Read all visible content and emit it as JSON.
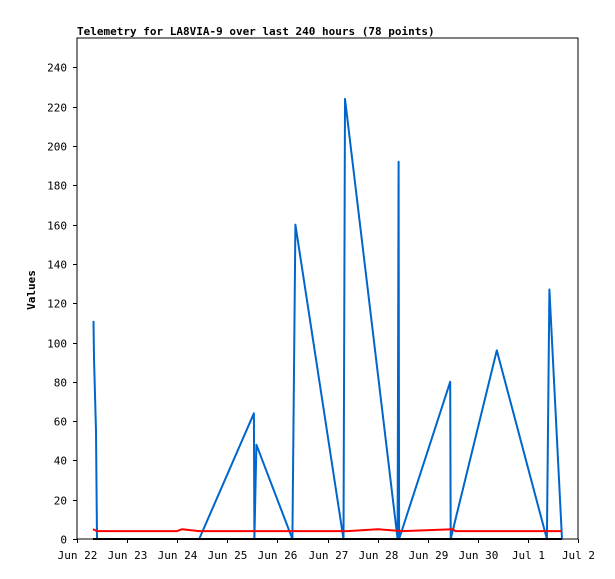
{
  "chart_data": {
    "type": "line",
    "title": "Telemetry for LA8VIA-9 over last 240 hours (78 points)",
    "xlabel": "",
    "ylabel": "Values",
    "ylim": [
      0,
      255
    ],
    "grid": false,
    "yticks": [
      0,
      20,
      40,
      60,
      80,
      100,
      120,
      140,
      160,
      180,
      200,
      220,
      240
    ],
    "xticks": [
      {
        "label": "Jun 22",
        "x": 0
      },
      {
        "label": "Jun 23",
        "x": 1
      },
      {
        "label": "Jun 24",
        "x": 2
      },
      {
        "label": "Jun 25",
        "x": 3
      },
      {
        "label": "Jun 26",
        "x": 4
      },
      {
        "label": "Jun 27",
        "x": 5
      },
      {
        "label": "Jun 28",
        "x": 6
      },
      {
        "label": "Jun 29",
        "x": 7
      },
      {
        "label": "Jun 30",
        "x": 8
      },
      {
        "label": "Jul 1",
        "x": 9
      },
      {
        "label": "Jul 2",
        "x": 10
      }
    ],
    "xlim": [
      0,
      10
    ],
    "series": [
      {
        "color": "#0066cc",
        "points": [
          [
            0.33,
            111
          ],
          [
            0.34,
            92
          ],
          [
            0.38,
            55
          ],
          [
            0.4,
            0
          ],
          [
            2.44,
            0
          ],
          [
            3.53,
            64
          ],
          [
            3.54,
            0
          ],
          [
            3.58,
            48
          ],
          [
            4.3,
            0
          ],
          [
            4.36,
            160
          ],
          [
            5.32,
            0
          ],
          [
            5.35,
            224
          ],
          [
            6.4,
            0
          ],
          [
            6.42,
            192
          ],
          [
            6.43,
            0
          ],
          [
            7.45,
            80
          ],
          [
            7.46,
            0
          ],
          [
            8.38,
            96
          ],
          [
            9.38,
            0
          ],
          [
            9.43,
            127
          ],
          [
            9.68,
            0
          ]
        ]
      },
      {
        "color": "#ff0000",
        "points": [
          [
            0.32,
            5
          ],
          [
            0.4,
            4
          ],
          [
            2.0,
            4
          ],
          [
            2.1,
            5
          ],
          [
            2.44,
            4
          ],
          [
            5.4,
            4
          ],
          [
            6.0,
            5
          ],
          [
            6.5,
            4
          ],
          [
            7.5,
            5
          ],
          [
            7.55,
            4
          ],
          [
            9.68,
            4
          ]
        ]
      },
      {
        "color": "#000000",
        "points": [
          [
            0.32,
            0
          ],
          [
            9.68,
            0
          ]
        ]
      }
    ]
  }
}
